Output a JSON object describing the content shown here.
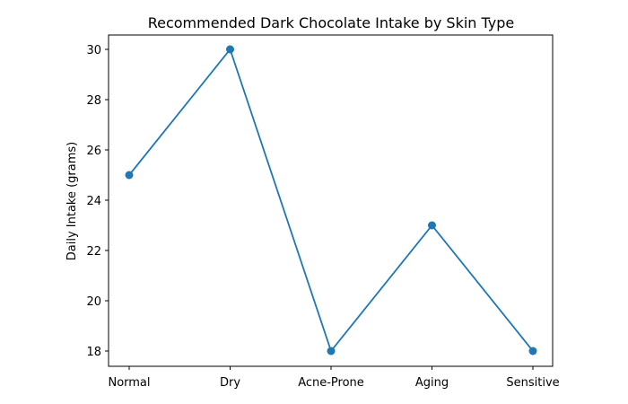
{
  "chart_data": {
    "type": "line",
    "title": "Recommended Dark Chocolate Intake by Skin Type",
    "xlabel": "",
    "ylabel": "Daily Intake (grams)",
    "categories": [
      "Normal",
      "Dry",
      "Acne-Prone",
      "Aging",
      "Sensitive"
    ],
    "series": [
      {
        "name": "Daily Intake",
        "values": [
          25,
          30,
          18,
          23,
          18
        ],
        "color": "#1f77b4",
        "marker": "circle"
      }
    ],
    "ylim": [
      17.4,
      30.6
    ],
    "yticks": [
      18,
      20,
      22,
      24,
      26,
      28,
      30
    ],
    "grid": false,
    "legend": null
  }
}
